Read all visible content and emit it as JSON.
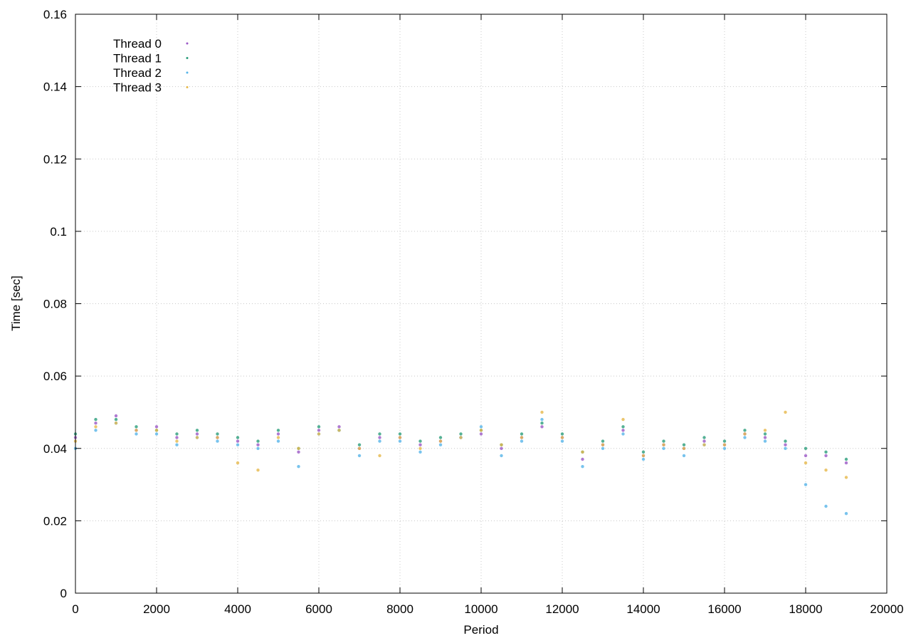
{
  "chart_data": {
    "type": "scatter",
    "title": "",
    "xlabel": "Period",
    "ylabel": "Time [sec]",
    "xlim": [
      0,
      20000
    ],
    "ylim": [
      0,
      0.16
    ],
    "x_ticks": [
      "0",
      "2000",
      "4000",
      "6000",
      "8000",
      "10000",
      "12000",
      "14000",
      "16000",
      "18000",
      "20000"
    ],
    "y_ticks": [
      "0",
      "0.02",
      "0.04",
      "0.06",
      "0.08",
      "0.1",
      "0.12",
      "0.14",
      "0.16"
    ],
    "grid": true,
    "legend_position": "top-left",
    "series": [
      {
        "name": "Thread 0",
        "color": "#9b59c6",
        "points": [
          [
            0,
            0.043
          ],
          [
            500,
            0.047
          ],
          [
            1000,
            0.049
          ],
          [
            1500,
            0.045
          ],
          [
            2000,
            0.046
          ],
          [
            2500,
            0.043
          ],
          [
            3000,
            0.044
          ],
          [
            3500,
            0.043
          ],
          [
            4000,
            0.042
          ],
          [
            4500,
            0.041
          ],
          [
            5000,
            0.044
          ],
          [
            5500,
            0.039
          ],
          [
            6000,
            0.045
          ],
          [
            6500,
            0.046
          ],
          [
            7000,
            0.04
          ],
          [
            7500,
            0.043
          ],
          [
            8000,
            0.043
          ],
          [
            8500,
            0.041
          ],
          [
            9000,
            0.042
          ],
          [
            9500,
            0.043
          ],
          [
            10000,
            0.044
          ],
          [
            10500,
            0.04
          ],
          [
            11000,
            0.043
          ],
          [
            11500,
            0.046
          ],
          [
            12000,
            0.043
          ],
          [
            12500,
            0.037
          ],
          [
            13000,
            0.041
          ],
          [
            13500,
            0.045
          ],
          [
            14000,
            0.038
          ],
          [
            14500,
            0.041
          ],
          [
            15000,
            0.04
          ],
          [
            15500,
            0.042
          ],
          [
            16000,
            0.041
          ],
          [
            16500,
            0.044
          ],
          [
            17000,
            0.043
          ],
          [
            17500,
            0.041
          ],
          [
            18000,
            0.038
          ],
          [
            18500,
            0.038
          ],
          [
            19000,
            0.036
          ]
        ]
      },
      {
        "name": "Thread 1",
        "color": "#2a9d7a",
        "points": [
          [
            0,
            0.044
          ],
          [
            500,
            0.048
          ],
          [
            1000,
            0.048
          ],
          [
            1500,
            0.046
          ],
          [
            2000,
            0.045
          ],
          [
            2500,
            0.044
          ],
          [
            3000,
            0.045
          ],
          [
            3500,
            0.044
          ],
          [
            4000,
            0.043
          ],
          [
            4500,
            0.042
          ],
          [
            5000,
            0.045
          ],
          [
            5500,
            0.04
          ],
          [
            6000,
            0.046
          ],
          [
            6500,
            0.045
          ],
          [
            7000,
            0.041
          ],
          [
            7500,
            0.044
          ],
          [
            8000,
            0.044
          ],
          [
            8500,
            0.042
          ],
          [
            9000,
            0.043
          ],
          [
            9500,
            0.044
          ],
          [
            10000,
            0.045
          ],
          [
            10500,
            0.041
          ],
          [
            11000,
            0.044
          ],
          [
            11500,
            0.047
          ],
          [
            12000,
            0.044
          ],
          [
            12500,
            0.039
          ],
          [
            13000,
            0.042
          ],
          [
            13500,
            0.046
          ],
          [
            14000,
            0.039
          ],
          [
            14500,
            0.042
          ],
          [
            15000,
            0.041
          ],
          [
            15500,
            0.043
          ],
          [
            16000,
            0.042
          ],
          [
            16500,
            0.045
          ],
          [
            17000,
            0.044
          ],
          [
            17500,
            0.042
          ],
          [
            18000,
            0.04
          ],
          [
            18500,
            0.039
          ],
          [
            19000,
            0.037
          ]
        ]
      },
      {
        "name": "Thread 2",
        "color": "#56b4e9",
        "points": [
          [
            0,
            0.04
          ],
          [
            500,
            0.045
          ],
          [
            1000,
            0.047
          ],
          [
            1500,
            0.044
          ],
          [
            2000,
            0.044
          ],
          [
            2500,
            0.041
          ],
          [
            3000,
            0.043
          ],
          [
            3500,
            0.042
          ],
          [
            4000,
            0.041
          ],
          [
            4500,
            0.04
          ],
          [
            5000,
            0.042
          ],
          [
            5500,
            0.035
          ],
          [
            6000,
            0.044
          ],
          [
            6500,
            0.045
          ],
          [
            7000,
            0.038
          ],
          [
            7500,
            0.042
          ],
          [
            8000,
            0.042
          ],
          [
            8500,
            0.039
          ],
          [
            9000,
            0.041
          ],
          [
            9500,
            0.043
          ],
          [
            10000,
            0.046
          ],
          [
            10500,
            0.038
          ],
          [
            11000,
            0.042
          ],
          [
            11500,
            0.048
          ],
          [
            12000,
            0.042
          ],
          [
            12500,
            0.035
          ],
          [
            13000,
            0.04
          ],
          [
            13500,
            0.044
          ],
          [
            14000,
            0.037
          ],
          [
            14500,
            0.04
          ],
          [
            15000,
            0.038
          ],
          [
            15500,
            0.041
          ],
          [
            16000,
            0.04
          ],
          [
            16500,
            0.043
          ],
          [
            17000,
            0.042
          ],
          [
            17500,
            0.04
          ],
          [
            18000,
            0.03
          ],
          [
            18500,
            0.024
          ],
          [
            19000,
            0.022
          ]
        ]
      },
      {
        "name": "Thread 3",
        "color": "#e6b84a",
        "points": [
          [
            0,
            0.042
          ],
          [
            500,
            0.046
          ],
          [
            1000,
            0.047
          ],
          [
            1500,
            0.045
          ],
          [
            2000,
            0.045
          ],
          [
            2500,
            0.042
          ],
          [
            3000,
            0.043
          ],
          [
            3500,
            0.043
          ],
          [
            4000,
            0.036
          ],
          [
            4500,
            0.034
          ],
          [
            5000,
            0.043
          ],
          [
            5500,
            0.04
          ],
          [
            6000,
            0.044
          ],
          [
            6500,
            0.045
          ],
          [
            7000,
            0.04
          ],
          [
            7500,
            0.038
          ],
          [
            8000,
            0.043
          ],
          [
            8500,
            0.04
          ],
          [
            9000,
            0.042
          ],
          [
            9500,
            0.043
          ],
          [
            10000,
            0.045
          ],
          [
            10500,
            0.041
          ],
          [
            11000,
            0.043
          ],
          [
            11500,
            0.05
          ],
          [
            12000,
            0.043
          ],
          [
            12500,
            0.039
          ],
          [
            13000,
            0.041
          ],
          [
            13500,
            0.048
          ],
          [
            14000,
            0.038
          ],
          [
            14500,
            0.041
          ],
          [
            15000,
            0.04
          ],
          [
            15500,
            0.041
          ],
          [
            16000,
            0.041
          ],
          [
            16500,
            0.044
          ],
          [
            17000,
            0.045
          ],
          [
            17500,
            0.05
          ],
          [
            18000,
            0.036
          ],
          [
            18500,
            0.034
          ],
          [
            19000,
            0.032
          ]
        ]
      }
    ]
  }
}
